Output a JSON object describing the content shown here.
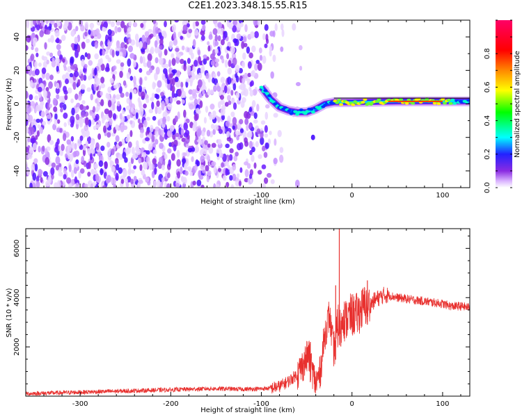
{
  "title": "C2E1.2023.348.15.55.R15",
  "colors": {
    "snr_line": "#e8302e",
    "spectrum_low": "#8a2be2",
    "frame": "#000000"
  },
  "chart_data": [
    {
      "type": "heatmap",
      "title": "C2E1.2023.348.15.55.R15",
      "xlabel": "Height of straight line (km)",
      "ylabel": "Frequency (Hz)",
      "xlim": [
        -360,
        130
      ],
      "ylim": [
        -50,
        50
      ],
      "xticks": [
        -300,
        -200,
        -100,
        0,
        100
      ],
      "yticks": [
        -40,
        -20,
        0,
        20,
        40
      ],
      "colorbar": {
        "label": "Normalized spectral amplitude",
        "range": [
          0,
          1
        ],
        "ticks": [
          0.0,
          0.2,
          0.4,
          0.6,
          0.8
        ],
        "colormap": [
          "#ffffff",
          "#d9b3ff",
          "#8a2be2",
          "#2222ff",
          "#00ffff",
          "#00ff00",
          "#ffff00",
          "#ff8800",
          "#ff0000",
          "#ff0066"
        ]
      },
      "features": {
        "noise_band_x": [
          -360,
          -110
        ],
        "signal_ridge": [
          {
            "x": -100,
            "y": 10
          },
          {
            "x": -90,
            "y": 3
          },
          {
            "x": -80,
            "y": -2
          },
          {
            "x": -70,
            "y": -4
          },
          {
            "x": -60,
            "y": -5
          },
          {
            "x": -50,
            "y": -5
          },
          {
            "x": -40,
            "y": -3
          },
          {
            "x": -30,
            "y": 0
          },
          {
            "x": -20,
            "y": 1
          },
          {
            "x": 0,
            "y": 1
          },
          {
            "x": 50,
            "y": 1.5
          },
          {
            "x": 100,
            "y": 1.5
          },
          {
            "x": 130,
            "y": 1.5
          }
        ]
      }
    },
    {
      "type": "line",
      "xlabel": "Height of straight line (km)",
      "ylabel": "SNR (10 * v/v)",
      "xlim": [
        -360,
        130
      ],
      "ylim": [
        0,
        6800
      ],
      "xticks": [
        -300,
        -200,
        -100,
        0,
        100
      ],
      "yticks": [
        2000,
        4000,
        6000
      ],
      "series": [
        {
          "x": [
            -360,
            -340,
            -320,
            -300,
            -280,
            -260,
            -240,
            -220,
            -200,
            -180,
            -160,
            -140,
            -120,
            -100,
            -90,
            -80,
            -70,
            -60,
            -52,
            -48,
            -45,
            -40,
            -35,
            -30,
            -25,
            -20,
            -15,
            -12,
            -10,
            -8,
            -5,
            0,
            5,
            10,
            15,
            20,
            25,
            30,
            35,
            40,
            50,
            60,
            70,
            80,
            90,
            100,
            110,
            120,
            130
          ],
          "y": [
            100,
            120,
            140,
            160,
            180,
            200,
            220,
            240,
            260,
            280,
            300,
            300,
            280,
            300,
            320,
            400,
            600,
            900,
            1400,
            1700,
            1200,
            500,
            1000,
            2500,
            3300,
            1800,
            3000,
            2600,
            3500,
            3000,
            3200,
            3300,
            3300,
            3500,
            3700,
            3700,
            3900,
            4000,
            4100,
            4100,
            4000,
            3950,
            3900,
            3850,
            3800,
            3750,
            3650,
            3650,
            3600
          ],
          "spikes": [
            {
              "x": -14,
              "y": 6800
            },
            {
              "x": -18,
              "y": 4500
            },
            {
              "x": 17,
              "y": 4700
            },
            {
              "x": -46,
              "y": 2200
            }
          ]
        }
      ]
    }
  ]
}
